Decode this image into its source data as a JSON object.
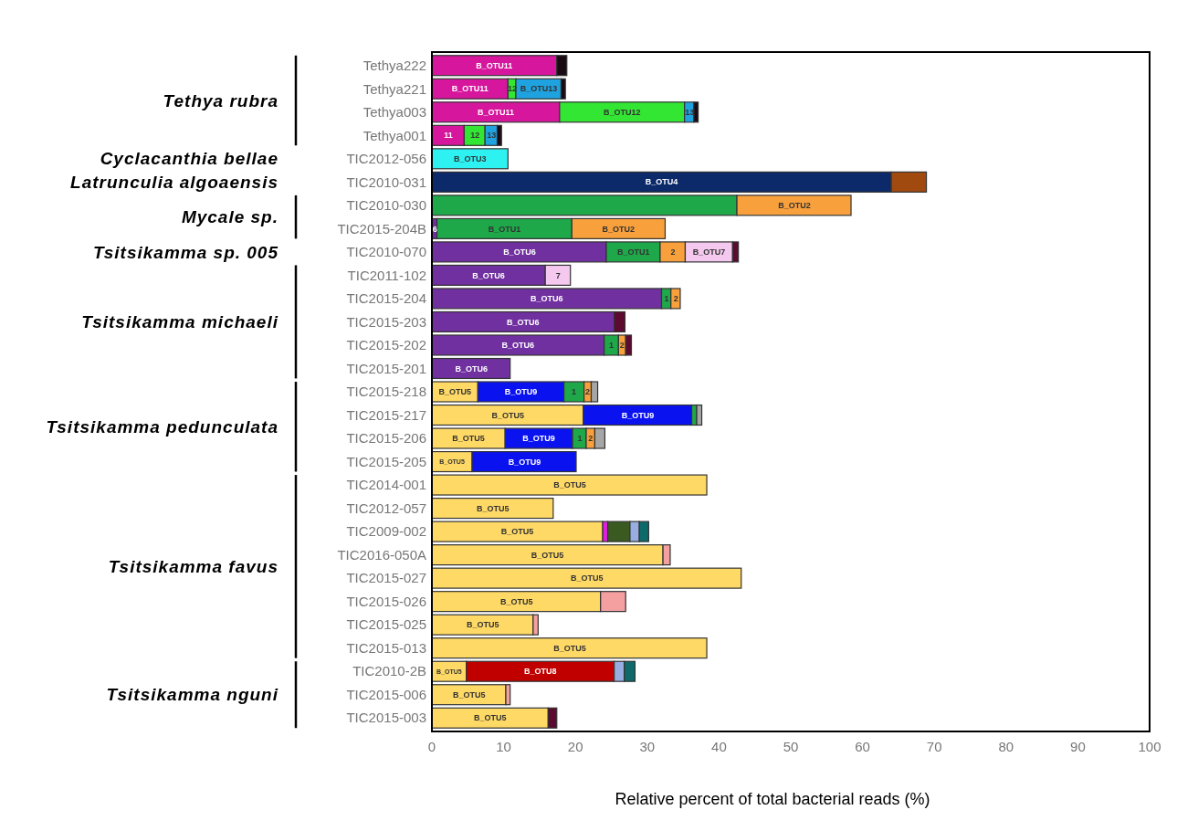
{
  "chart_data": {
    "type": "bar",
    "orientation": "horizontal",
    "stacked": true,
    "xlabel": "Relative percent of total bacterial reads (%)",
    "categories": [
      "Tethya222",
      "Tethya221",
      "Tethya003",
      "Tethya001",
      "TIC2012-056",
      "TIC2010-031",
      "TIC2010-030",
      "TIC2015-204B",
      "TIC2010-070",
      "TIC2011-102",
      "TIC2015-204",
      "TIC2015-203",
      "TIC2015-202",
      "TIC2015-201",
      "TIC2015-218",
      "TIC2015-217",
      "TIC2015-206",
      "TIC2015-205",
      "TIC2014-001",
      "TIC2012-057",
      "TIC2009-002",
      "TIC2016-050A",
      "TIC2015-027",
      "TIC2015-026",
      "TIC2015-025",
      "TIC2015-013",
      "TIC2010-2B",
      "TIC2015-006",
      "TIC2015-003"
    ],
    "xlim": [
      0,
      100
    ],
    "xticks": [
      0,
      10,
      20,
      30,
      40,
      50,
      60,
      70,
      80,
      90,
      100
    ],
    "grid": false,
    "annotations": [
      "Tethya rubra",
      "Cyclacanthia bellae",
      "Latrunculia algoaensis",
      "Mycale sp.",
      "Tsitsikamma sp. 005",
      "Tsitsikamma michaeli",
      "Tsitsikamma pedunculata",
      "Tsitsikamma favus",
      "Tsitsikamma nguni",
      {
        "text": "B_OTU11",
        "x": 8.7,
        "y": "Tethya222"
      },
      {
        "text": "B_OTU11",
        "x": 5.3,
        "y": "Tethya221"
      },
      {
        "text": "12",
        "x": 11.2,
        "y": "Tethya221"
      },
      {
        "text": "B_OTU13",
        "x": 14.9,
        "y": "Tethya221"
      },
      {
        "text": "B_OTU11",
        "x": 8.9,
        "y": "Tethya003"
      },
      {
        "text": "B_OTU12",
        "x": 26.5,
        "y": "Tethya003"
      },
      {
        "text": "13",
        "x": 35.9,
        "y": "Tethya003"
      },
      {
        "text": "11",
        "x": 2.3,
        "y": "Tethya001"
      },
      {
        "text": "12",
        "x": 6.0,
        "y": "Tethya001"
      },
      {
        "text": "13",
        "x": 8.3,
        "y": "Tethya001"
      },
      {
        "text": "B_OTU3",
        "x": 5.3,
        "y": "TIC2012-056"
      },
      {
        "text": "B_OTU4",
        "x": 32.0,
        "y": "TIC2010-031"
      },
      {
        "text": "B_OTU2",
        "x": 50.5,
        "y": "TIC2010-030"
      },
      {
        "text": "6",
        "x": 0.4,
        "y": "TIC2015-204B"
      },
      {
        "text": "B_OTU1",
        "x": 10.1,
        "y": "TIC2015-204B"
      },
      {
        "text": "B_OTU2",
        "x": 26.0,
        "y": "TIC2015-204B"
      },
      {
        "text": "B_OTU6",
        "x": 12.2,
        "y": "TIC2010-070"
      },
      {
        "text": "B_OTU1",
        "x": 28.1,
        "y": "TIC2010-070"
      },
      {
        "text": "2",
        "x": 33.6,
        "y": "TIC2010-070"
      },
      {
        "text": "B_OTU7",
        "x": 38.6,
        "y": "TIC2010-070"
      },
      {
        "text": "B_OTU6",
        "x": 7.9,
        "y": "TIC2011-102"
      },
      {
        "text": "7",
        "x": 17.6,
        "y": "TIC2011-102"
      },
      {
        "text": "B_OTU6",
        "x": 16.0,
        "y": "TIC2015-204"
      },
      {
        "text": "1",
        "x": 32.7,
        "y": "TIC2015-204"
      },
      {
        "text": "2",
        "x": 34.0,
        "y": "TIC2015-204"
      },
      {
        "text": "B_OTU6",
        "x": 12.7,
        "y": "TIC2015-203"
      },
      {
        "text": "B_OTU6",
        "x": 12.0,
        "y": "TIC2015-202"
      },
      {
        "text": "1",
        "x": 25.0,
        "y": "TIC2015-202"
      },
      {
        "text": "2",
        "x": 26.5,
        "y": "TIC2015-202"
      },
      {
        "text": "B_OTU6",
        "x": 5.5,
        "y": "TIC2015-201"
      },
      {
        "text": "B_OTU5",
        "x": 3.2,
        "y": "TIC2015-218"
      },
      {
        "text": "B_OTU9",
        "x": 12.4,
        "y": "TIC2015-218"
      },
      {
        "text": "1",
        "x": 19.8,
        "y": "TIC2015-218"
      },
      {
        "text": "2",
        "x": 21.7,
        "y": "TIC2015-218"
      },
      {
        "text": "B_OTU5",
        "x": 10.6,
        "y": "TIC2015-217"
      },
      {
        "text": "B_OTU9",
        "x": 28.7,
        "y": "TIC2015-217"
      },
      {
        "text": "B_OTU5",
        "x": 5.1,
        "y": "TIC2015-206"
      },
      {
        "text": "B_OTU9",
        "x": 14.9,
        "y": "TIC2015-206"
      },
      {
        "text": "1",
        "x": 20.6,
        "y": "TIC2015-206"
      },
      {
        "text": "2",
        "x": 22.1,
        "y": "TIC2015-206"
      },
      {
        "text": "B_OTU5",
        "x": 2.8,
        "y": "TIC2015-205"
      },
      {
        "text": "B_OTU9",
        "x": 12.9,
        "y": "TIC2015-205"
      },
      {
        "text": "B_OTU5",
        "x": 19.2,
        "y": "TIC2014-001"
      },
      {
        "text": "B_OTU5",
        "x": 8.5,
        "y": "TIC2012-057"
      },
      {
        "text": "B_OTU5",
        "x": 11.9,
        "y": "TIC2009-002"
      },
      {
        "text": "B_OTU5",
        "x": 16.1,
        "y": "TIC2016-050A"
      },
      {
        "text": "B_OTU5",
        "x": 21.6,
        "y": "TIC2015-027"
      },
      {
        "text": "B_OTU5",
        "x": 11.8,
        "y": "TIC2015-026"
      },
      {
        "text": "B_OTU5",
        "x": 7.1,
        "y": "TIC2015-025"
      },
      {
        "text": "B_OTU5",
        "x": 19.2,
        "y": "TIC2015-013"
      },
      {
        "text": "B_OTU5",
        "x": 2.4,
        "y": "TIC2010-2B"
      },
      {
        "text": "B_OTU8",
        "x": 15.1,
        "y": "TIC2010-2B"
      },
      {
        "text": "B_OTU5",
        "x": 5.2,
        "y": "TIC2015-006"
      },
      {
        "text": "B_OTU5",
        "x": 8.1,
        "y": "TIC2015-003"
      }
    ],
    "series": [
      {
        "color": "#d6169c",
        "values": [
          17.4,
          10.6,
          17.8,
          4.5,
          null,
          null,
          null,
          null,
          null,
          null,
          null,
          null,
          null,
          null,
          null,
          null,
          null,
          null,
          null,
          null,
          null,
          null,
          null,
          null,
          null,
          null,
          null,
          null,
          null
        ]
      },
      {
        "color": "#33e633",
        "values": [
          null,
          1.1,
          17.4,
          2.9,
          null,
          null,
          null,
          null,
          null,
          null,
          null,
          null,
          null,
          null,
          null,
          null,
          null,
          null,
          null,
          null,
          null,
          null,
          null,
          null,
          null,
          null,
          null,
          null,
          null
        ]
      },
      {
        "color": "#1fa3e0",
        "values": [
          null,
          6.3,
          1.3,
          1.7,
          null,
          null,
          null,
          null,
          null,
          null,
          null,
          null,
          null,
          null,
          null,
          null,
          null,
          null,
          null,
          null,
          null,
          null,
          null,
          null,
          null,
          null,
          null,
          null,
          null
        ]
      },
      {
        "color": "#2ef2f2",
        "values": [
          null,
          null,
          null,
          null,
          10.6,
          null,
          null,
          null,
          null,
          null,
          null,
          null,
          null,
          null,
          null,
          null,
          null,
          null,
          null,
          null,
          null,
          null,
          null,
          null,
          null,
          null,
          null,
          null,
          null
        ]
      },
      {
        "color": "#0c2a6a",
        "values": [
          null,
          null,
          null,
          null,
          null,
          64.0,
          null,
          null,
          null,
          null,
          null,
          null,
          null,
          null,
          null,
          null,
          null,
          null,
          null,
          null,
          null,
          null,
          null,
          null,
          null,
          null,
          null,
          null,
          null
        ]
      },
      {
        "color": "#a04a10",
        "values": [
          null,
          null,
          null,
          null,
          null,
          4.9,
          null,
          null,
          null,
          null,
          null,
          null,
          null,
          null,
          null,
          null,
          null,
          null,
          null,
          null,
          null,
          null,
          null,
          null,
          null,
          null,
          null,
          null,
          null
        ]
      },
      {
        "color": "#7030a0",
        "values": [
          null,
          null,
          null,
          null,
          null,
          null,
          null,
          0.7,
          24.3,
          15.8,
          32.0,
          25.4,
          24.0,
          10.9,
          null,
          null,
          null,
          null,
          null,
          null,
          null,
          null,
          null,
          null,
          null,
          null,
          null,
          null,
          null
        ]
      },
      {
        "color": "#ffd966",
        "values": [
          null,
          null,
          null,
          null,
          null,
          null,
          null,
          null,
          null,
          null,
          null,
          null,
          null,
          null,
          6.4,
          21.1,
          10.2,
          5.6,
          38.3,
          16.9,
          23.8,
          32.2,
          43.1,
          23.5,
          14.1,
          38.3,
          4.8,
          10.3,
          16.2
        ]
      },
      {
        "color": "#0a12f0",
        "values": [
          null,
          null,
          null,
          null,
          null,
          null,
          null,
          null,
          null,
          null,
          null,
          null,
          null,
          null,
          12.0,
          15.1,
          9.4,
          14.5,
          null,
          null,
          null,
          null,
          null,
          null,
          null,
          null,
          null,
          null,
          null
        ]
      },
      {
        "color": "#c00000",
        "values": [
          null,
          null,
          null,
          null,
          null,
          null,
          null,
          null,
          null,
          null,
          null,
          null,
          null,
          null,
          null,
          null,
          null,
          null,
          null,
          null,
          null,
          null,
          null,
          null,
          null,
          null,
          20.6,
          null,
          null
        ]
      },
      {
        "color": "#1ea84a",
        "values": [
          null,
          null,
          null,
          null,
          null,
          null,
          42.5,
          18.8,
          7.5,
          null,
          1.3,
          null,
          2.0,
          null,
          2.8,
          0.7,
          1.9,
          null,
          null,
          null,
          null,
          null,
          null,
          null,
          null,
          null,
          null,
          null,
          null
        ]
      },
      {
        "color": "#f7a03c",
        "values": [
          null,
          null,
          null,
          null,
          null,
          null,
          15.9,
          13.0,
          3.5,
          null,
          1.3,
          null,
          1.0,
          null,
          1.0,
          null,
          1.2,
          null,
          null,
          null,
          null,
          null,
          null,
          null,
          null,
          null,
          null,
          null,
          null
        ]
      },
      {
        "color": "#f5c8ef",
        "values": [
          null,
          null,
          null,
          null,
          null,
          null,
          null,
          null,
          6.6,
          3.5,
          null,
          null,
          null,
          null,
          null,
          null,
          null,
          null,
          null,
          null,
          null,
          null,
          null,
          null,
          null,
          null,
          null,
          null,
          null
        ]
      },
      {
        "color": "#e020e0",
        "values": [
          null,
          null,
          null,
          null,
          null,
          null,
          null,
          null,
          null,
          null,
          null,
          null,
          null,
          null,
          null,
          null,
          null,
          null,
          null,
          null,
          0.7,
          null,
          null,
          null,
          null,
          null,
          null,
          null,
          null
        ]
      },
      {
        "color": "#3a5a22",
        "values": [
          null,
          null,
          null,
          null,
          null,
          null,
          null,
          null,
          null,
          null,
          null,
          null,
          null,
          null,
          null,
          null,
          null,
          null,
          null,
          null,
          3.1,
          null,
          null,
          null,
          null,
          null,
          null,
          null,
          null
        ]
      },
      {
        "color": "#98aee0",
        "values": [
          null,
          null,
          null,
          null,
          null,
          null,
          null,
          null,
          null,
          null,
          null,
          null,
          null,
          null,
          null,
          null,
          null,
          null,
          null,
          null,
          1.3,
          null,
          null,
          null,
          null,
          null,
          1.4,
          null,
          null
        ]
      },
      {
        "color": "#0e6a6a",
        "values": [
          null,
          null,
          null,
          null,
          null,
          null,
          null,
          null,
          null,
          null,
          null,
          null,
          null,
          null,
          null,
          null,
          null,
          null,
          null,
          null,
          1.3,
          null,
          null,
          null,
          null,
          null,
          1.5,
          null,
          null
        ]
      },
      {
        "color": "#a6a6a6",
        "values": [
          null,
          null,
          null,
          null,
          null,
          null,
          null,
          null,
          null,
          null,
          null,
          null,
          null,
          null,
          0.9,
          0.7,
          1.4,
          null,
          null,
          null,
          null,
          null,
          null,
          null,
          null,
          null,
          null,
          null,
          null
        ]
      },
      {
        "color": "#f4a0a0",
        "values": [
          null,
          null,
          null,
          null,
          null,
          null,
          null,
          null,
          null,
          null,
          null,
          null,
          null,
          null,
          null,
          null,
          null,
          null,
          null,
          null,
          null,
          1.0,
          null,
          3.5,
          0.7,
          null,
          null,
          0.6,
          null
        ]
      },
      {
        "color": "#1a0a14",
        "values": [
          1.4,
          0.6,
          0.6,
          0.6,
          null,
          null,
          null,
          null,
          null,
          null,
          null,
          null,
          null,
          null,
          null,
          null,
          null,
          null,
          null,
          null,
          null,
          null,
          null,
          null,
          null,
          null,
          null,
          null,
          null
        ]
      },
      {
        "color": "#5c0a30",
        "values": [
          null,
          null,
          null,
          null,
          null,
          null,
          null,
          null,
          0.8,
          null,
          null,
          1.5,
          0.8,
          null,
          null,
          null,
          null,
          null,
          null,
          null,
          null,
          null,
          null,
          null,
          null,
          null,
          null,
          null,
          1.2
        ]
      }
    ]
  }
}
